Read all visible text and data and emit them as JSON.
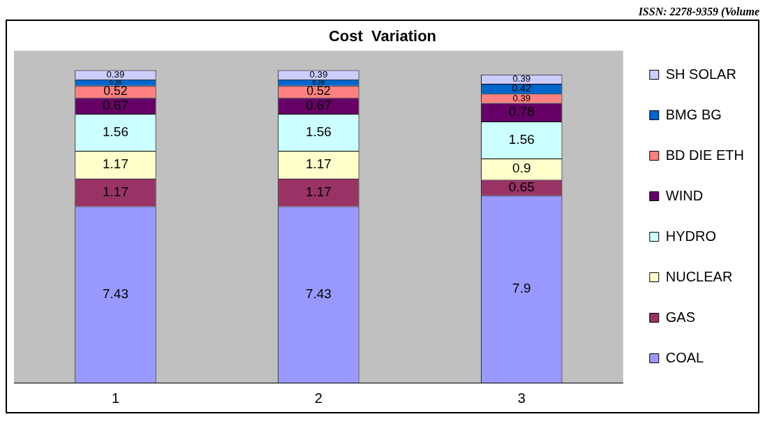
{
  "chart_data": {
    "type": "bar",
    "title": "Cost  Variation",
    "categories": [
      "1",
      "2",
      "3"
    ],
    "stacked": true,
    "data_labels": true,
    "legend": "right",
    "grid": false,
    "annotations": [
      "ISSN: 2278-9359 (Volume"
    ],
    "series": [
      {
        "name": "COAL",
        "color": "#9999ff",
        "values": [
          7.43,
          7.43,
          7.9
        ]
      },
      {
        "name": "GAS",
        "color": "#993366",
        "values": [
          1.17,
          1.17,
          0.65
        ]
      },
      {
        "name": "NUCLEAR",
        "color": "#ffffcc",
        "values": [
          1.17,
          1.17,
          0.9
        ]
      },
      {
        "name": "HYDRO",
        "color": "#ccffff",
        "values": [
          1.56,
          1.56,
          1.56
        ]
      },
      {
        "name": "WIND",
        "color": "#660066",
        "values": [
          0.67,
          0.67,
          0.78
        ]
      },
      {
        "name": "BD DIE ETH",
        "color": "#ff8080",
        "values": [
          0.52,
          0.52,
          0.39
        ]
      },
      {
        "name": "BMG BG",
        "color": "#0066cc",
        "values": [
          0.26,
          0.26,
          0.42
        ]
      },
      {
        "name": "SH SOLAR",
        "color": "#ccccff",
        "values": [
          0.39,
          0.39,
          0.39
        ]
      }
    ]
  }
}
